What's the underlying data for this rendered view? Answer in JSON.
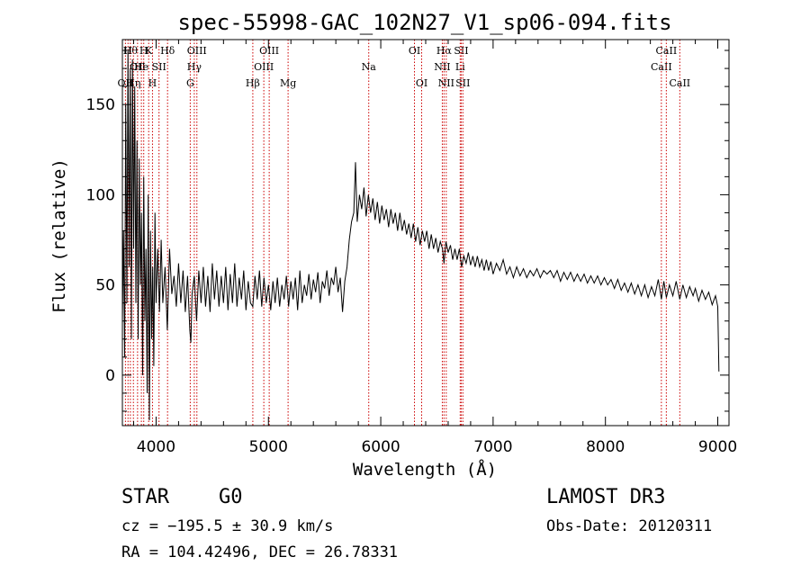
{
  "chart_data": {
    "type": "line",
    "title": "spec-55998-GAC_102N27_V1_sp06-094.fits",
    "xlabel": "Wavelength (Å)",
    "ylabel": "Flux (relative)",
    "xlim": [
      3700,
      9100
    ],
    "ylim": [
      -28,
      186
    ],
    "x_ticks": [
      4000,
      5000,
      6000,
      7000,
      8000,
      9000
    ],
    "y_ticks": [
      0,
      50,
      100,
      150
    ],
    "series": [
      {
        "name": "flux",
        "color": "#000000",
        "points": [
          [
            3700,
            30
          ],
          [
            3710,
            80
          ],
          [
            3720,
            10
          ],
          [
            3730,
            150
          ],
          [
            3740,
            40
          ],
          [
            3750,
            180
          ],
          [
            3760,
            60
          ],
          [
            3770,
            170
          ],
          [
            3780,
            20
          ],
          [
            3790,
            175
          ],
          [
            3800,
            70
          ],
          [
            3810,
            160
          ],
          [
            3820,
            40
          ],
          [
            3830,
            130
          ],
          [
            3840,
            20
          ],
          [
            3850,
            120
          ],
          [
            3860,
            50
          ],
          [
            3870,
            90
          ],
          [
            3880,
            0
          ],
          [
            3890,
            110
          ],
          [
            3900,
            30
          ],
          [
            3910,
            70
          ],
          [
            3920,
            -10
          ],
          [
            3930,
            100
          ],
          [
            3940,
            -25
          ],
          [
            3950,
            80
          ],
          [
            3960,
            20
          ],
          [
            3970,
            60
          ],
          [
            3980,
            5
          ],
          [
            3990,
            90
          ],
          [
            4000,
            40
          ],
          [
            4015,
            70
          ],
          [
            4030,
            35
          ],
          [
            4045,
            75
          ],
          [
            4060,
            40
          ],
          [
            4080,
            60
          ],
          [
            4100,
            25
          ],
          [
            4120,
            70
          ],
          [
            4140,
            45
          ],
          [
            4160,
            55
          ],
          [
            4180,
            38
          ],
          [
            4200,
            62
          ],
          [
            4220,
            40
          ],
          [
            4240,
            58
          ],
          [
            4260,
            35
          ],
          [
            4280,
            55
          ],
          [
            4300,
            25
          ],
          [
            4310,
            18
          ],
          [
            4320,
            45
          ],
          [
            4340,
            55
          ],
          [
            4360,
            30
          ],
          [
            4380,
            58
          ],
          [
            4400,
            40
          ],
          [
            4420,
            60
          ],
          [
            4440,
            38
          ],
          [
            4460,
            55
          ],
          [
            4480,
            35
          ],
          [
            4500,
            62
          ],
          [
            4520,
            42
          ],
          [
            4540,
            58
          ],
          [
            4560,
            38
          ],
          [
            4580,
            55
          ],
          [
            4600,
            40
          ],
          [
            4620,
            60
          ],
          [
            4640,
            36
          ],
          [
            4660,
            56
          ],
          [
            4680,
            40
          ],
          [
            4700,
            62
          ],
          [
            4720,
            38
          ],
          [
            4740,
            54
          ],
          [
            4760,
            42
          ],
          [
            4780,
            58
          ],
          [
            4800,
            36
          ],
          [
            4820,
            52
          ],
          [
            4840,
            40
          ],
          [
            4861,
            38
          ],
          [
            4880,
            55
          ],
          [
            4900,
            42
          ],
          [
            4920,
            58
          ],
          [
            4940,
            38
          ],
          [
            4960,
            54
          ],
          [
            4980,
            40
          ],
          [
            5000,
            50
          ],
          [
            5020,
            36
          ],
          [
            5040,
            52
          ],
          [
            5060,
            40
          ],
          [
            5080,
            54
          ],
          [
            5100,
            38
          ],
          [
            5120,
            50
          ],
          [
            5140,
            42
          ],
          [
            5160,
            55
          ],
          [
            5180,
            38
          ],
          [
            5200,
            52
          ],
          [
            5220,
            42
          ],
          [
            5240,
            54
          ],
          [
            5260,
            36
          ],
          [
            5280,
            58
          ],
          [
            5300,
            40
          ],
          [
            5320,
            50
          ],
          [
            5340,
            44
          ],
          [
            5360,
            56
          ],
          [
            5380,
            42
          ],
          [
            5400,
            53
          ],
          [
            5420,
            46
          ],
          [
            5440,
            57
          ],
          [
            5460,
            40
          ],
          [
            5480,
            52
          ],
          [
            5500,
            48
          ],
          [
            5520,
            58
          ],
          [
            5540,
            44
          ],
          [
            5560,
            54
          ],
          [
            5580,
            50
          ],
          [
            5600,
            60
          ],
          [
            5620,
            46
          ],
          [
            5640,
            54
          ],
          [
            5660,
            35
          ],
          [
            5680,
            52
          ],
          [
            5700,
            60
          ],
          [
            5720,
            75
          ],
          [
            5740,
            85
          ],
          [
            5760,
            90
          ],
          [
            5775,
            118
          ],
          [
            5790,
            85
          ],
          [
            5810,
            100
          ],
          [
            5830,
            92
          ],
          [
            5850,
            104
          ],
          [
            5870,
            88
          ],
          [
            5890,
            100
          ],
          [
            5910,
            90
          ],
          [
            5930,
            98
          ],
          [
            5950,
            86
          ],
          [
            5970,
            96
          ],
          [
            5990,
            84
          ],
          [
            6010,
            94
          ],
          [
            6030,
            86
          ],
          [
            6050,
            92
          ],
          [
            6070,
            82
          ],
          [
            6090,
            92
          ],
          [
            6110,
            84
          ],
          [
            6130,
            90
          ],
          [
            6150,
            80
          ],
          [
            6170,
            90
          ],
          [
            6190,
            80
          ],
          [
            6210,
            86
          ],
          [
            6230,
            78
          ],
          [
            6250,
            84
          ],
          [
            6270,
            76
          ],
          [
            6290,
            84
          ],
          [
            6310,
            74
          ],
          [
            6330,
            82
          ],
          [
            6350,
            72
          ],
          [
            6370,
            80
          ],
          [
            6390,
            74
          ],
          [
            6410,
            80
          ],
          [
            6430,
            70
          ],
          [
            6450,
            78
          ],
          [
            6470,
            70
          ],
          [
            6490,
            76
          ],
          [
            6510,
            68
          ],
          [
            6530,
            74
          ],
          [
            6550,
            70
          ],
          [
            6563,
            62
          ],
          [
            6580,
            74
          ],
          [
            6600,
            68
          ],
          [
            6620,
            72
          ],
          [
            6640,
            64
          ],
          [
            6660,
            70
          ],
          [
            6680,
            64
          ],
          [
            6700,
            70
          ],
          [
            6720,
            60
          ],
          [
            6740,
            66
          ],
          [
            6760,
            62
          ],
          [
            6780,
            68
          ],
          [
            6800,
            61
          ],
          [
            6820,
            66
          ],
          [
            6840,
            60
          ],
          [
            6860,
            66
          ],
          [
            6880,
            60
          ],
          [
            6900,
            64
          ],
          [
            6920,
            58
          ],
          [
            6940,
            64
          ],
          [
            6960,
            58
          ],
          [
            6980,
            63
          ],
          [
            7000,
            56
          ],
          [
            7030,
            62
          ],
          [
            7060,
            58
          ],
          [
            7090,
            64
          ],
          [
            7120,
            56
          ],
          [
            7150,
            60
          ],
          [
            7180,
            54
          ],
          [
            7210,
            60
          ],
          [
            7240,
            55
          ],
          [
            7270,
            59
          ],
          [
            7300,
            54
          ],
          [
            7330,
            58
          ],
          [
            7360,
            55
          ],
          [
            7390,
            59
          ],
          [
            7420,
            54
          ],
          [
            7450,
            58
          ],
          [
            7480,
            56
          ],
          [
            7510,
            58
          ],
          [
            7540,
            54
          ],
          [
            7570,
            58
          ],
          [
            7600,
            52
          ],
          [
            7630,
            57
          ],
          [
            7660,
            53
          ],
          [
            7690,
            57
          ],
          [
            7720,
            52
          ],
          [
            7750,
            56
          ],
          [
            7780,
            52
          ],
          [
            7810,
            56
          ],
          [
            7840,
            51
          ],
          [
            7870,
            55
          ],
          [
            7900,
            51
          ],
          [
            7930,
            55
          ],
          [
            7960,
            50
          ],
          [
            7990,
            54
          ],
          [
            8020,
            50
          ],
          [
            8050,
            53
          ],
          [
            8080,
            48
          ],
          [
            8110,
            53
          ],
          [
            8140,
            47
          ],
          [
            8170,
            51
          ],
          [
            8200,
            46
          ],
          [
            8230,
            51
          ],
          [
            8260,
            45
          ],
          [
            8290,
            50
          ],
          [
            8320,
            44
          ],
          [
            8350,
            50
          ],
          [
            8380,
            43
          ],
          [
            8410,
            49
          ],
          [
            8440,
            44
          ],
          [
            8470,
            53
          ],
          [
            8498,
            42
          ],
          [
            8520,
            52
          ],
          [
            8542,
            43
          ],
          [
            8570,
            50
          ],
          [
            8600,
            44
          ],
          [
            8630,
            52
          ],
          [
            8662,
            42
          ],
          [
            8690,
            50
          ],
          [
            8720,
            43
          ],
          [
            8750,
            49
          ],
          [
            8780,
            44
          ],
          [
            8800,
            48
          ],
          [
            8830,
            41
          ],
          [
            8860,
            47
          ],
          [
            8890,
            42
          ],
          [
            8920,
            46
          ],
          [
            8950,
            39
          ],
          [
            8980,
            44
          ],
          [
            9000,
            38
          ],
          [
            9010,
            2
          ]
        ]
      }
    ],
    "line_color": "#cc0000",
    "lines": [
      {
        "wavelength": 3727,
        "label": "OII",
        "row": 2
      },
      {
        "wavelength": 3750,
        "label": "H",
        "row": 0
      },
      {
        "wavelength": 3771,
        "label": "Hθ",
        "row": 0
      },
      {
        "wavelength": 3798,
        "label": "Hη",
        "row": 2
      },
      {
        "wavelength": 3835,
        "label": "OII",
        "row": 1
      },
      {
        "wavelength": 3869,
        "label": "He",
        "row": 1
      },
      {
        "wavelength": 3890,
        "label": "H",
        "row": 0
      },
      {
        "wavelength": 3934,
        "label": "K",
        "row": 0
      },
      {
        "wavelength": 3968,
        "label": "H",
        "row": 2
      },
      {
        "wavelength": 4026,
        "label": "SII",
        "row": 1
      },
      {
        "wavelength": 4102,
        "label": "Hδ",
        "row": 0
      },
      {
        "wavelength": 4304,
        "label": "G",
        "row": 2
      },
      {
        "wavelength": 4340,
        "label": "Hγ",
        "row": 1
      },
      {
        "wavelength": 4363,
        "label": "OIII",
        "row": 0
      },
      {
        "wavelength": 4861,
        "label": "Hβ",
        "row": 2
      },
      {
        "wavelength": 4959,
        "label": "OIII",
        "row": 1
      },
      {
        "wavelength": 5007,
        "label": "OIII",
        "row": 0
      },
      {
        "wavelength": 5175,
        "label": "Mg",
        "row": 2
      },
      {
        "wavelength": 5893,
        "label": "Na",
        "row": 1
      },
      {
        "wavelength": 6300,
        "label": "OI",
        "row": 0
      },
      {
        "wavelength": 6364,
        "label": "OI",
        "row": 2
      },
      {
        "wavelength": 6548,
        "label": "NII",
        "row": 1
      },
      {
        "wavelength": 6563,
        "label": "Hα",
        "row": 0
      },
      {
        "wavelength": 6583,
        "label": "NII",
        "row": 2
      },
      {
        "wavelength": 6707,
        "label": "Li",
        "row": 1
      },
      {
        "wavelength": 6716,
        "label": "SII",
        "row": 0
      },
      {
        "wavelength": 6731,
        "label": "SII",
        "row": 2
      },
      {
        "wavelength": 8498,
        "label": "CaII",
        "row": 1
      },
      {
        "wavelength": 8542,
        "label": "CaII",
        "row": 0
      },
      {
        "wavelength": 8662,
        "label": "CaII",
        "row": 2
      }
    ]
  },
  "info": {
    "classification": "STAR",
    "subclass": "G0",
    "survey": "LAMOST DR3",
    "redshift": "cz = −195.5 ± 30.9 km/s",
    "obs_date": "Obs-Date: 20120311",
    "coords": "RA = 104.42496, DEC =  26.78331"
  }
}
